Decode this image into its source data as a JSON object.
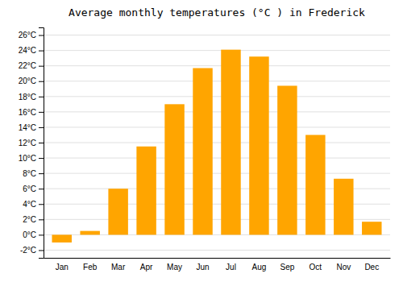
{
  "chart_data": {
    "type": "bar",
    "title": "Average monthly temperatures (°C ) in Frederick",
    "categories": [
      "Jan",
      "Feb",
      "Mar",
      "Apr",
      "May",
      "Jun",
      "Jul",
      "Aug",
      "Sep",
      "Oct",
      "Nov",
      "Dec"
    ],
    "values": [
      -1.0,
      0.5,
      6.0,
      11.5,
      17.0,
      21.7,
      24.1,
      23.2,
      19.4,
      13.0,
      7.3,
      1.7
    ],
    "color": "#FFA500",
    "ylim": [
      -3,
      27
    ],
    "yticks": [
      {
        "value": -2,
        "label": "-2°C"
      },
      {
        "value": 0,
        "label": "0°C"
      },
      {
        "value": 2,
        "label": "2°C"
      },
      {
        "value": 4,
        "label": "4°C"
      },
      {
        "value": 6,
        "label": "6°C"
      },
      {
        "value": 8,
        "label": "8°C"
      },
      {
        "value": 10,
        "label": "10°C"
      },
      {
        "value": 12,
        "label": "12°C"
      },
      {
        "value": 14,
        "label": "14°C"
      },
      {
        "value": 16,
        "label": "16°C"
      },
      {
        "value": 18,
        "label": "18°C"
      },
      {
        "value": 20,
        "label": "20°C"
      },
      {
        "value": 22,
        "label": "22°C"
      },
      {
        "value": 24,
        "label": "24°C"
      },
      {
        "value": 26,
        "label": "26°C"
      }
    ],
    "grid": true
  }
}
